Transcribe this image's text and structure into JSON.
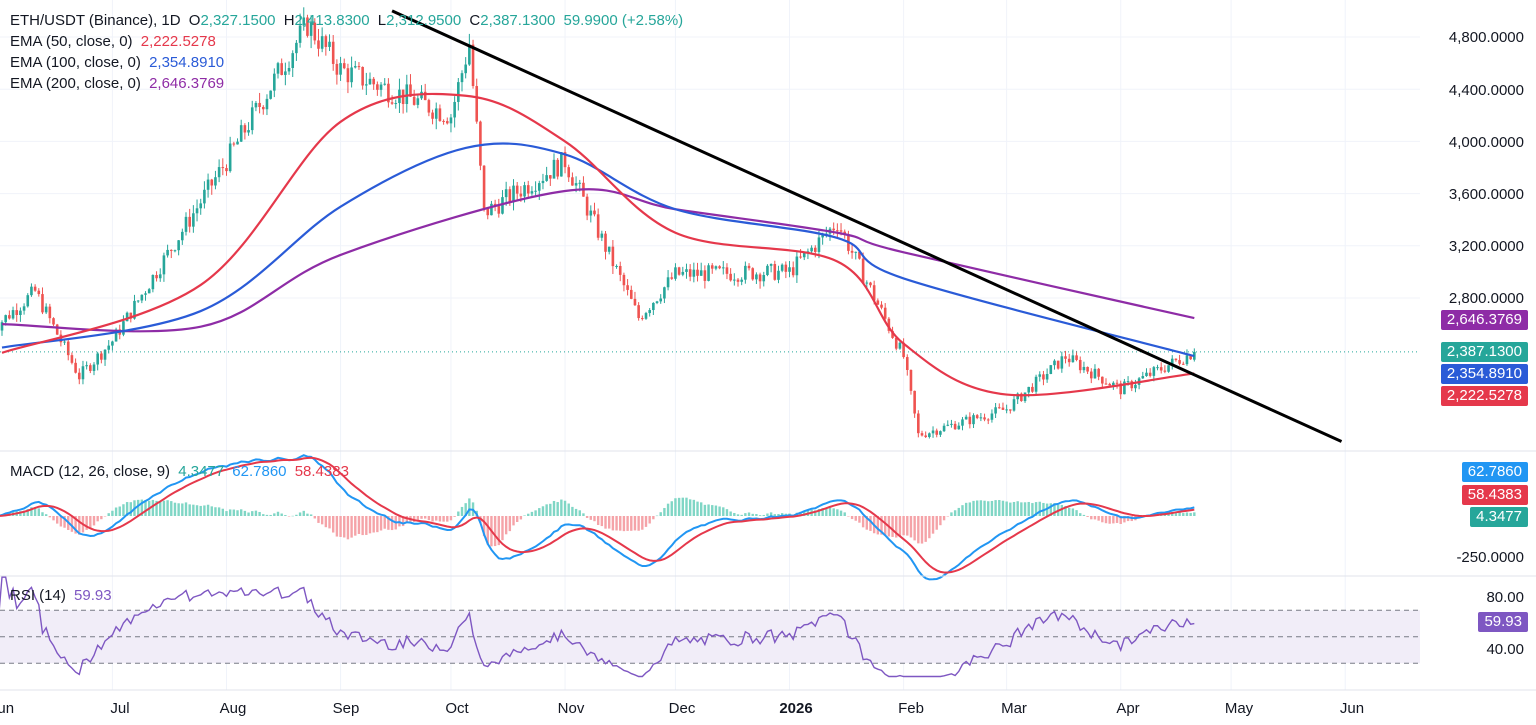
{
  "header": {
    "symbol": "ETH/USDT (Binance), 1D",
    "o_label": "O",
    "o": "2,327.1500",
    "h_label": "H",
    "h": "2,413.8300",
    "l_label": "L",
    "l": "2,312.9500",
    "c_label": "C",
    "c": "2,387.1300",
    "change": "59.9900 (+2.58%)"
  },
  "indicators": {
    "ema50": {
      "label": "EMA (50, close, 0)",
      "value": "2,222.5278",
      "color": "#e5384b"
    },
    "ema100": {
      "label": "EMA (100, close, 0)",
      "value": "2,354.8910",
      "color": "#2a5bd7"
    },
    "ema200": {
      "label": "EMA (200, close, 0)",
      "value": "2,646.3769",
      "color": "#8e2ca6"
    },
    "macd": {
      "label": "MACD (12, 26, close, 9)",
      "hist": "4.3477",
      "macd": "62.7860",
      "signal": "58.4383"
    },
    "rsi": {
      "label": "RSI (14)",
      "value": "59.93"
    }
  },
  "price_axis": [
    "4,800.0000",
    "4,400.0000",
    "4,000.0000",
    "3,600.0000",
    "3,200.0000",
    "2,800.0000"
  ],
  "price_tags": {
    "close": "2,387.1300",
    "ema100": "2,354.8910",
    "ema50": "2,222.5278",
    "ema200": "2,646.3769"
  },
  "macd_axis": {
    "low": "-250.0000",
    "tags": [
      "62.7860",
      "58.4383",
      "4.3477"
    ]
  },
  "rsi_axis": [
    "80.00",
    "40.00"
  ],
  "rsi_tag": "59.93",
  "time_axis": [
    "Jun",
    "Jul",
    "Aug",
    "Sep",
    "Oct",
    "Nov",
    "Dec",
    "2026",
    "Feb",
    "Mar",
    "Apr",
    "May",
    "Jun"
  ],
  "colors": {
    "up": "#26a69a",
    "down": "#ef5350",
    "ema50": "#e5384b",
    "ema100": "#2a5bd7",
    "ema200": "#8e2ca6",
    "macd": "#2196f3",
    "signal": "#e5384b",
    "rsi": "#7e57c2",
    "trendline": "#000000"
  },
  "chart_data": {
    "type": "candlestick",
    "title": "ETH/USDT (Binance), 1D",
    "price_range": [
      1650,
      5000
    ],
    "monthly_path": {
      "months": [
        "2025-05-29",
        "2025-07-01",
        "2025-08-01",
        "2025-09-01",
        "2025-10-01",
        "2025-11-01",
        "2025-12-01",
        "2026-01-01",
        "2026-02-01",
        "2026-03-01",
        "2026-04-01",
        "2026-04-21"
      ],
      "close": [
        2550,
        2470,
        3850,
        4550,
        4200,
        3850,
        2980,
        3000,
        2350,
        1950,
        2100,
        2387
      ]
    },
    "key_points": [
      {
        "date": "2025-06-10",
        "price": 2850
      },
      {
        "date": "2025-06-22",
        "price": 2200
      },
      {
        "date": "2025-08-23",
        "price": 4900
      },
      {
        "date": "2025-10-06",
        "price": 4750
      },
      {
        "date": "2025-10-10",
        "price": 3450
      },
      {
        "date": "2025-11-21",
        "price": 2650
      },
      {
        "date": "2026-01-14",
        "price": 3380
      },
      {
        "date": "2026-02-05",
        "price": 1750
      },
      {
        "date": "2026-03-17",
        "price": 2350
      },
      {
        "date": "2026-04-21",
        "price": 2387
      }
    ],
    "ema_path_50": {
      "points": [
        [
          "2025-06-01",
          2380
        ],
        [
          "2025-07-25",
          2900
        ],
        [
          "2025-09-01",
          4150
        ],
        [
          "2025-10-05",
          4350
        ],
        [
          "2025-11-01",
          4000
        ],
        [
          "2025-12-01",
          3300
        ],
        [
          "2026-01-14",
          3080
        ],
        [
          "2026-02-01",
          2450
        ],
        [
          "2026-03-01",
          2060
        ],
        [
          "2026-04-21",
          2222
        ]
      ]
    },
    "ema_path_100": {
      "points": [
        [
          "2025-06-01",
          2420
        ],
        [
          "2025-07-25",
          2700
        ],
        [
          "2025-09-01",
          3500
        ],
        [
          "2025-10-05",
          3950
        ],
        [
          "2025-11-01",
          3900
        ],
        [
          "2025-12-01",
          3480
        ],
        [
          "2026-01-14",
          3260
        ],
        [
          "2026-02-01",
          2950
        ],
        [
          "2026-04-21",
          2355
        ]
      ]
    },
    "ema_path_200": {
      "points": [
        [
          "2025-06-01",
          2600
        ],
        [
          "2025-07-25",
          2580
        ],
        [
          "2025-09-01",
          3130
        ],
        [
          "2025-11-01",
          3620
        ],
        [
          "2025-12-01",
          3480
        ],
        [
          "2026-01-14",
          3300
        ],
        [
          "2026-02-01",
          3150
        ],
        [
          "2026-04-21",
          2646
        ]
      ]
    },
    "trendline": {
      "from": {
        "date": "2025-09-15",
        "price": 5000
      },
      "to": {
        "date": "2026-05-31",
        "price": 1700
      }
    },
    "macd_range": [
      -300,
      500
    ],
    "rsi_range": [
      20,
      95
    ],
    "rsi_levels": [
      70,
      50,
      30
    ]
  }
}
